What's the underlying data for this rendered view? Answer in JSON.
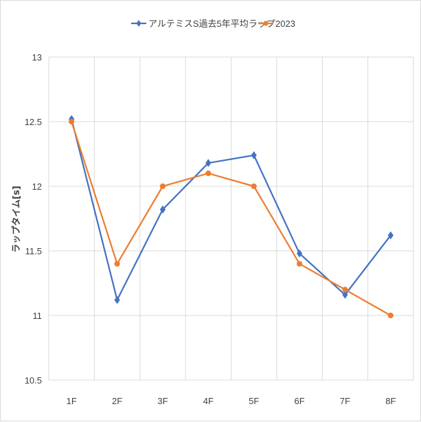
{
  "chart_data": {
    "type": "line",
    "categories": [
      "1F",
      "2F",
      "3F",
      "4F",
      "5F",
      "6F",
      "7F",
      "8F"
    ],
    "series": [
      {
        "name": "アルテミスS過去5年平均ラップ",
        "color": "#4472C4",
        "marker": "diamond",
        "values": [
          12.52,
          11.12,
          11.82,
          12.18,
          12.24,
          11.48,
          11.16,
          11.62
        ]
      },
      {
        "name": "2023",
        "color": "#ED7D31",
        "marker": "circle",
        "values": [
          12.5,
          11.4,
          12.0,
          12.1,
          12.0,
          11.4,
          11.2,
          11.0
        ]
      }
    ],
    "ylabel": "ラップタイム[s]",
    "ylim": [
      10.5,
      13
    ],
    "yticks": [
      "10.5",
      "11",
      "11.5",
      "12",
      "12.5",
      "13"
    ],
    "grid": true,
    "legend": "top"
  }
}
